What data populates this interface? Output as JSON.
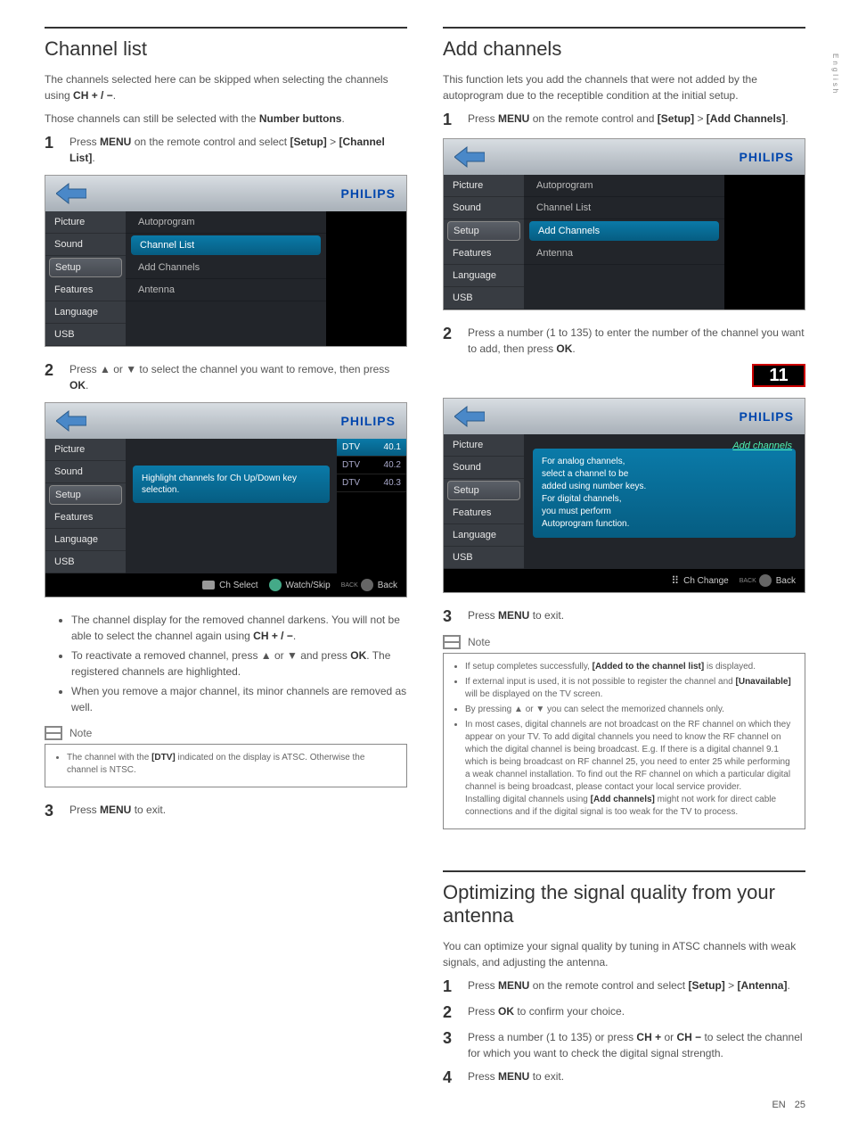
{
  "sideLabel": "English",
  "philipsBrand": "PHILIPS",
  "sidebarItems": [
    "Picture",
    "Sound",
    "Setup",
    "Features",
    "Language",
    "USB"
  ],
  "left": {
    "title": "Channel list",
    "intro1a": "The channels selected here can be skipped when selecting the channels using ",
    "intro1b": "CH + / −",
    "intro2a": "Those channels can still be selected with the ",
    "intro2b": "Number buttons",
    "step1a": "Press ",
    "step1b": "MENU",
    "step1c": " on the remote control and select ",
    "step1d": "[Setup]",
    "step1e": " > ",
    "step1f": "[Channel List]",
    "tv1MainItems": [
      "Autoprogram",
      "Channel List",
      "Add Channels",
      "Antenna"
    ],
    "tv1Highlight": 1,
    "step2a": "Press ▲ or ▼ to select the channel you want to remove, then press ",
    "step2b": "OK",
    "tv3Tip": "Highlight channels for Ch Up/Down key selection.",
    "tv3Channels": [
      [
        "DTV",
        "40.1"
      ],
      [
        "DTV",
        "40.2"
      ],
      [
        "DTV",
        "40.3"
      ]
    ],
    "tv3Btn1": "Ch Select",
    "tv3Btn2": "Watch/Skip",
    "tv3Btn3Label": "BACK",
    "tv3Btn3": "Back",
    "bullets": [
      {
        "a": "The channel display for the removed channel darkens. You will not be able to select the channel again using ",
        "b": "CH + / −",
        "c": "."
      },
      {
        "a": "To reactivate a removed channel, press ▲ or ▼ and press ",
        "b": "OK",
        "c": ". The registered channels are highlighted."
      },
      {
        "a": "When you remove a major channel, its minor channels are removed as well.",
        "b": "",
        "c": ""
      }
    ],
    "noteTitle": "Note",
    "noteItems": [
      "The channel with the [DTV] indicated on the display is ATSC. Otherwise the channel is NTSC."
    ],
    "step3a": "Press ",
    "step3b": "MENU",
    "step3c": " to exit."
  },
  "right": {
    "title": "Add channels",
    "intro": "This function lets you add the channels that were not added by the autoprogram due to the receptible condition at the initial setup.",
    "step1a": "Press ",
    "step1b": "MENU",
    "step1c": " on the remote control and ",
    "step1d": "[Setup]",
    "step1e": " > ",
    "step1f": "[Add Channels]",
    "tv2MainItems": [
      "Autoprogram",
      "Channel List",
      "Add Channels",
      "Antenna"
    ],
    "tv2Highlight": 2,
    "step2a": "Press a number (1 to 135) to enter the number of the channel you want to add, then press ",
    "step2b": "OK",
    "rbox": "11",
    "tv4AddLabel": "Add channels",
    "tv4Tip": "For analog channels,\nselect a channel to be\nadded using number keys.\nFor digital channels,\nyou must perform\nAutoprogram function.",
    "tv4Btn1": "Ch Change",
    "tv4Btn2Label": "BACK",
    "tv4Btn2": "Back",
    "step3a": "Press ",
    "step3b": "MENU",
    "step3c": " to exit.",
    "noteTitle": "Note",
    "noteItems": [
      "If setup completes successfully, [Added to the channel list] is displayed.",
      "If external input is used, it is not possible to register the channel and [Unavailable] will be displayed on the TV screen.",
      "By pressing ▲ or ▼ you can select the memorized channels only.",
      "In most cases, digital channels are not broadcast on the RF channel on which they appear on your TV. To add digital channels you need to know the RF channel on which the digital channel is being broadcast. E.g. If there is a digital channel 9.1 which is being broadcast on RF channel 25, you need to enter 25 while performing a weak channel installation. To find out the RF channel on which a particular digital channel is being broadcast, please contact your local service provider.\nInstalling digital channels using [Add channels] might not work for direct cable connections and if the digital signal is too weak for the TV to process."
    ],
    "opt": {
      "title": "Optimizing the signal quality from your antenna",
      "intro": "You can optimize your signal quality by tuning in ATSC channels with weak signals, and adjusting the antenna.",
      "step1a": "Press ",
      "step1b": "MENU",
      "step1c": " on the remote control and select ",
      "step1d": "[Setup]",
      "step1e": " > ",
      "step1f": "[Antenna]",
      "step2a": "Press ",
      "step2b": "OK",
      "step2c": " to confirm your choice.",
      "step3a": "Press a number (1 to 135) or press ",
      "step3b": "CH +",
      "step3c": " or ",
      "step3d": "CH −",
      "step3e": " to select the channel for which you want to check the digital signal strength.",
      "step4a": "Press ",
      "step4b": "MENU",
      "step4c": " to exit."
    }
  },
  "footer": {
    "lang": "EN",
    "page": "25"
  }
}
